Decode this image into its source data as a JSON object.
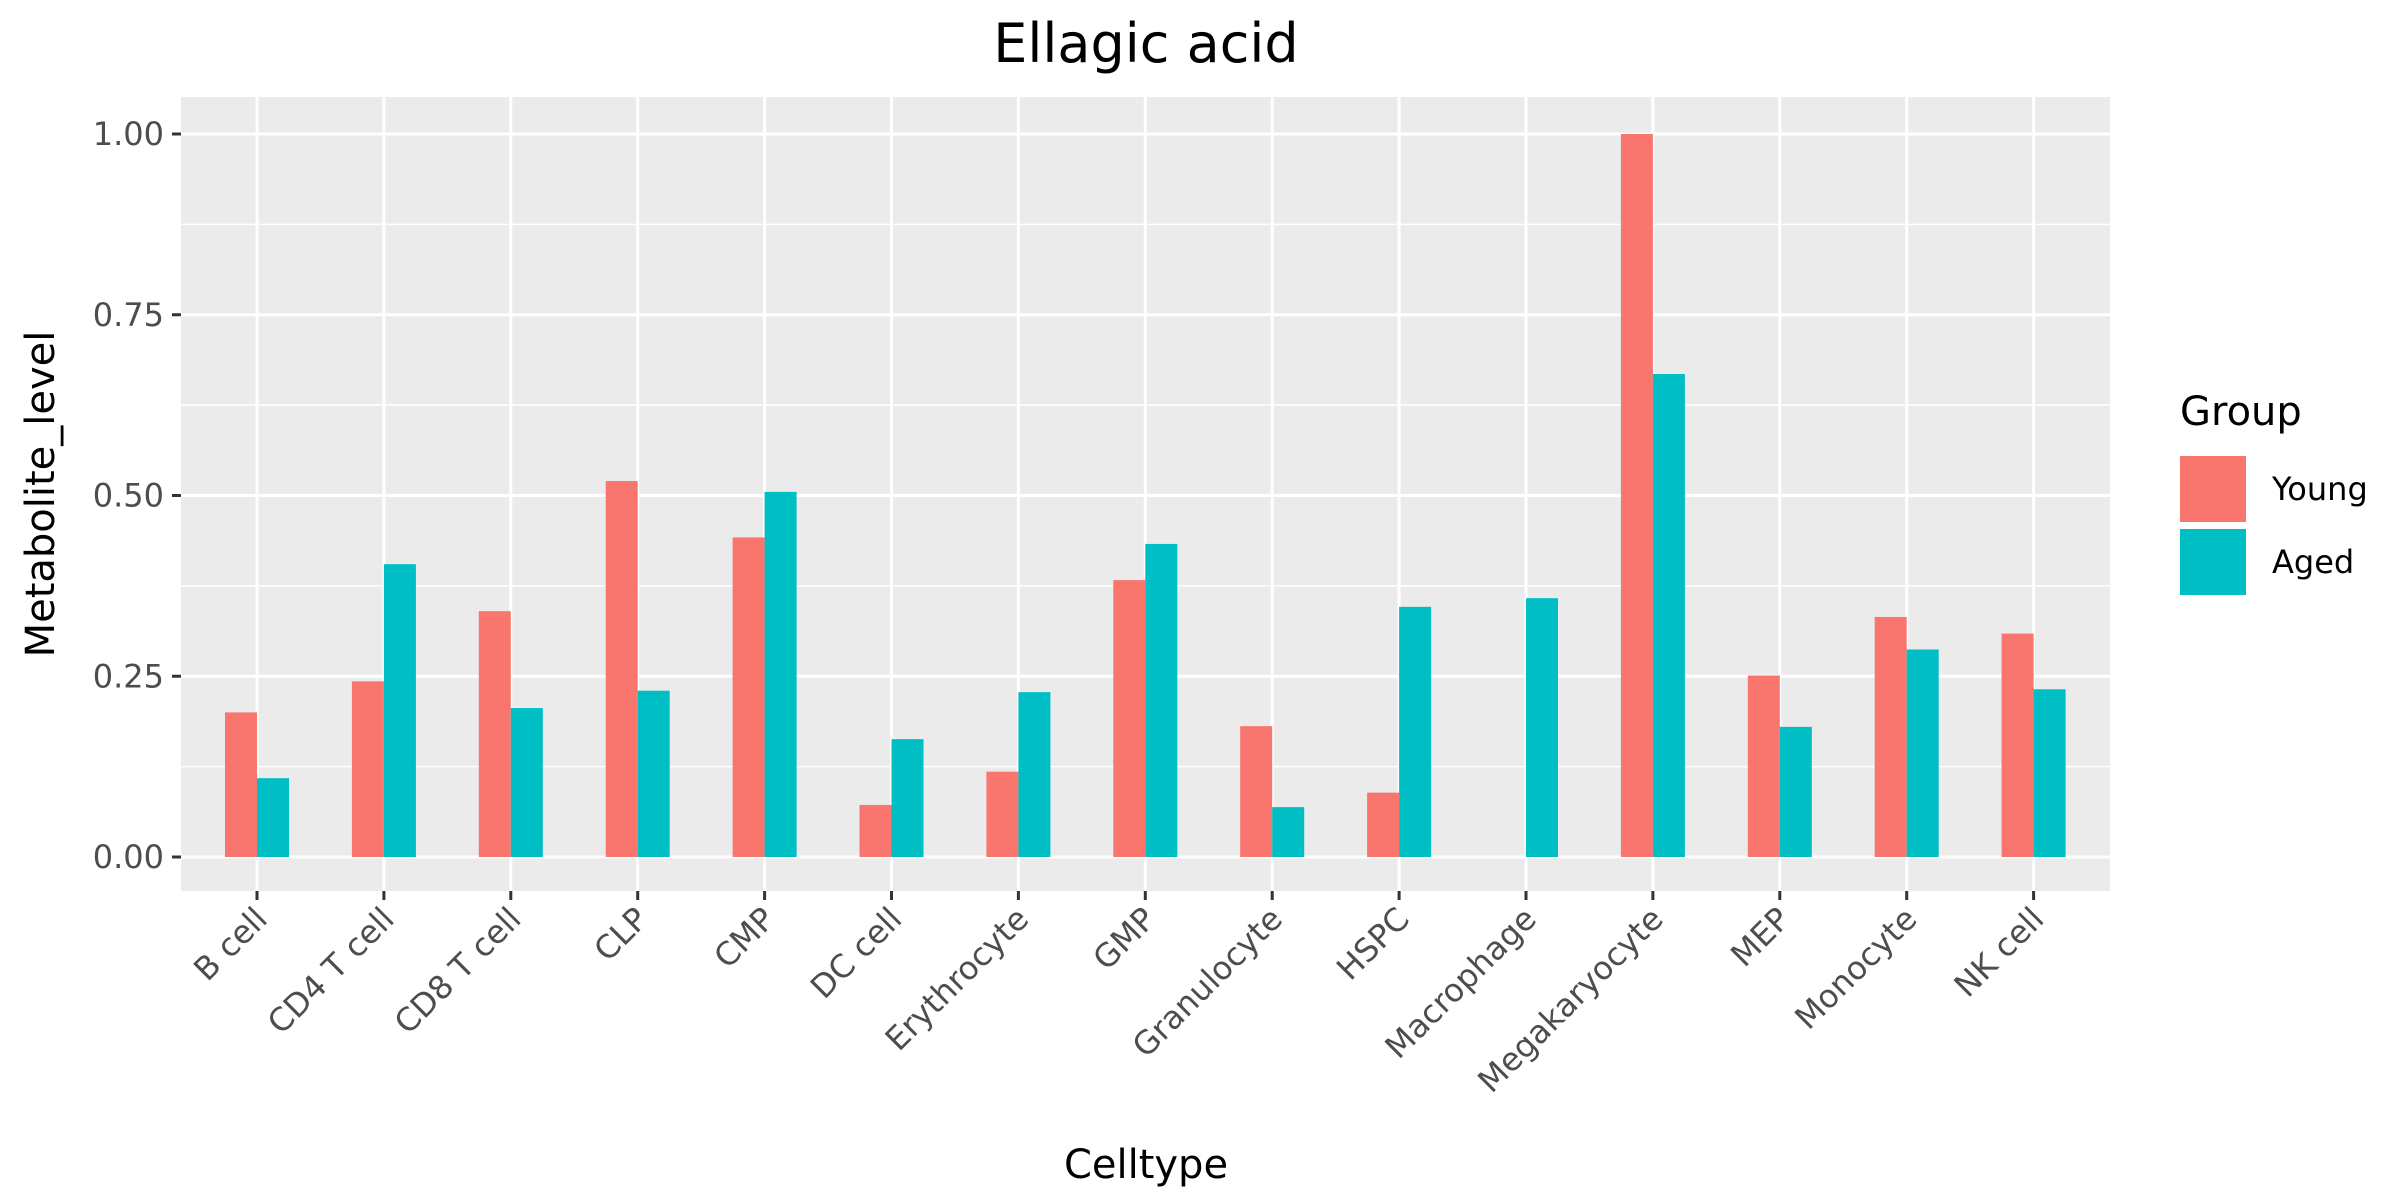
{
  "chart_data": {
    "type": "bar",
    "title": "Ellagic acid",
    "xlabel": "Celltype",
    "ylabel": "Metabolite_level",
    "ylim": [
      0,
      1.05
    ],
    "yticks": [
      0.0,
      0.25,
      0.5,
      0.75,
      1.0
    ],
    "ytick_labels": [
      "0.00",
      "0.25",
      "0.50",
      "0.75",
      "1.00"
    ],
    "grid": true,
    "categories": [
      "B cell",
      "CD4 T cell",
      "CD8 T cell",
      "CLP",
      "CMP",
      "DC cell",
      "Erythrocyte",
      "GMP",
      "Granulocyte",
      "HSPC",
      "Macrophage",
      "Megakaryocyte",
      "MEP",
      "Monocyte",
      "NK cell"
    ],
    "series": [
      {
        "name": "Young",
        "color": "#F8766D",
        "values": [
          0.2,
          0.243,
          0.34,
          0.52,
          0.442,
          0.072,
          0.118,
          0.383,
          0.181,
          0.089,
          0.0,
          1.0,
          0.251,
          0.332,
          0.309
        ]
      },
      {
        "name": "Aged",
        "color": "#00BFC4",
        "values": [
          0.109,
          0.405,
          0.206,
          0.23,
          0.505,
          0.163,
          0.228,
          0.433,
          0.069,
          0.346,
          0.358,
          0.668,
          0.18,
          0.287,
          0.232
        ]
      }
    ],
    "legend": {
      "title": "Group",
      "position": "right"
    }
  }
}
